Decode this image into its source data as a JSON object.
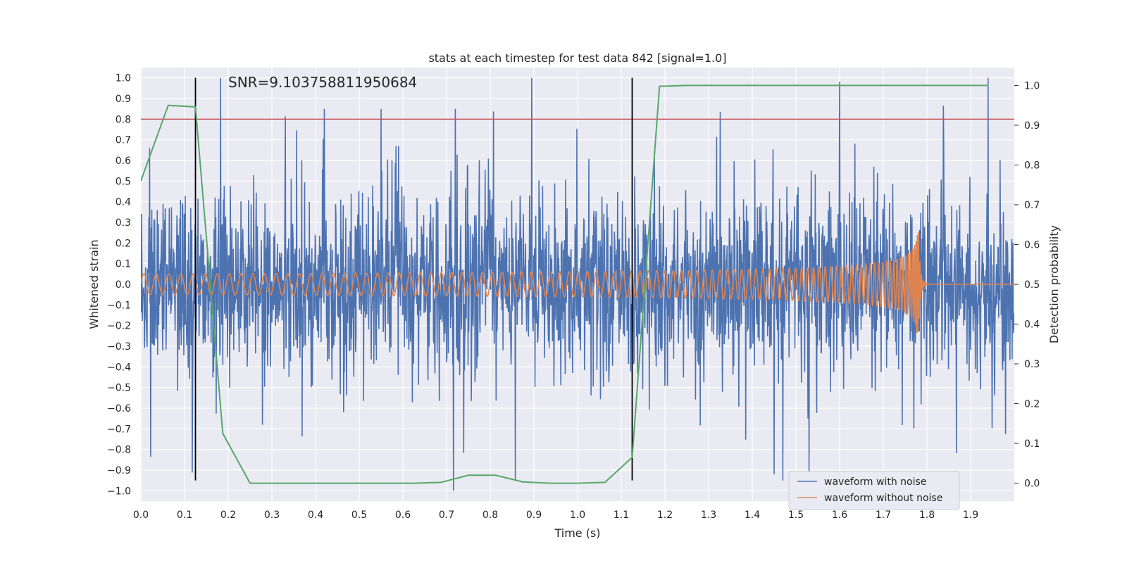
{
  "chart_data": {
    "type": "line",
    "title": "stats at each timestep for test data 842 [signal=1.0]",
    "annotation": "SNR=9.103758811950684",
    "xlabel": "Time (s)",
    "ylabel": "Whitened strain",
    "y2label": "Detection probability",
    "xlim": [
      0.0,
      2.0
    ],
    "ylim": [
      -1.05,
      1.05
    ],
    "y2lim": [
      -0.045,
      1.045
    ],
    "x_ticks": [
      "0.0",
      "0.1",
      "0.2",
      "0.3",
      "0.4",
      "0.5",
      "0.6",
      "0.7",
      "0.8",
      "0.9",
      "1.0",
      "1.1",
      "1.2",
      "1.3",
      "1.4",
      "1.5",
      "1.6",
      "1.7",
      "1.8",
      "1.9"
    ],
    "y_ticks": [
      "1.0",
      "0.9",
      "0.8",
      "0.7",
      "0.6",
      "0.5",
      "0.4",
      "0.3",
      "0.2",
      "0.1",
      "0.0",
      "−0.1",
      "−0.2",
      "−0.3",
      "−0.4",
      "−0.5",
      "−0.6",
      "−0.7",
      "−0.8",
      "−0.9",
      "−1.0"
    ],
    "y2_ticks": [
      "1.0",
      "0.9",
      "0.8",
      "0.7",
      "0.6",
      "0.5",
      "0.4",
      "0.3",
      "0.2",
      "0.1",
      "0.0"
    ],
    "grid": true,
    "legend_position": "lower-right",
    "threshold": {
      "y": 0.8,
      "color": "#c44e52"
    },
    "vertical_markers": [
      0.125,
      1.125
    ],
    "series": [
      {
        "name": "waveform with noise",
        "axis": "left",
        "color": "#4c72b0",
        "note": "whitened noisy strain; amplitude mostly within ±0.6 with spikes up to ±1.0, spanning 0.0–2.0 s",
        "amplitude_envelope": 0.6,
        "notable_peaks": [
          [
            0.02,
            0.66
          ],
          [
            0.42,
            0.85
          ],
          [
            0.55,
            0.85
          ],
          [
            0.72,
            0.85
          ],
          [
            0.895,
            1.0
          ],
          [
            1.6,
            0.98
          ],
          [
            1.47,
            -0.95
          ],
          [
            1.53,
            -0.93
          ],
          [
            1.45,
            -0.92
          ]
        ]
      },
      {
        "name": "waveform without noise",
        "axis": "left",
        "color": "#dd8452",
        "note": "clean chirp signal; amplitude ~0.05 growing to ~0.3 with rising frequency, merging near 1.78 s then ringdown",
        "start_freq_hz": 35,
        "merger_time": 1.78,
        "start_amplitude": 0.05,
        "peak_amplitude": 0.3
      },
      {
        "name": "detection probability",
        "axis": "right",
        "color": "#55a868",
        "x": [
          0.0,
          0.0625,
          0.125,
          0.1875,
          0.25,
          0.3125,
          0.375,
          0.4375,
          0.5,
          0.5625,
          0.625,
          0.6875,
          0.75,
          0.8125,
          0.875,
          0.9375,
          1.0,
          1.0625,
          1.125,
          1.1875,
          1.25,
          1.3125,
          1.375,
          1.4375,
          1.5,
          1.5625,
          1.625,
          1.6875,
          1.75,
          1.8125,
          1.875,
          1.9375
        ],
        "y": [
          0.76,
          0.95,
          0.946,
          0.125,
          0.0,
          0.0,
          0.0,
          0.0,
          0.0,
          0.0,
          0.0,
          0.002,
          0.02,
          0.02,
          0.003,
          0.0,
          0.0,
          0.002,
          0.065,
          0.998,
          1.0,
          1.0,
          1.0,
          1.0,
          1.0,
          1.0,
          1.0,
          1.0,
          1.0,
          1.0,
          1.0,
          1.0
        ]
      }
    ]
  }
}
